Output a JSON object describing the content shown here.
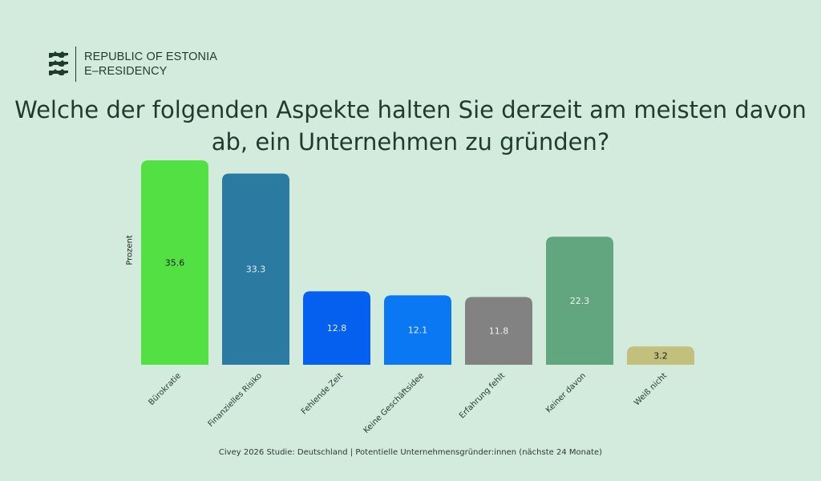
{
  "brand": {
    "line1": "REPUBLIC OF ESTONIA",
    "line2": "E–RESIDENCY",
    "icon": "three-lions-crest-icon"
  },
  "chart_data": {
    "type": "bar",
    "title": "Welche der folgenden Aspekte halten Sie derzeit am meisten davon ab, ein Unternehmen zu gründen?",
    "ylabel": "Prozent",
    "xlabel": "",
    "categories": [
      "Bürokratie",
      "Finanzielles Risiko",
      "Fehlende Zeit",
      "Keine Geschäftsidee",
      "Erfahrung fehlt",
      "Keiner davon",
      "Weiß nicht"
    ],
    "values": [
      35.6,
      33.3,
      12.8,
      12.1,
      11.8,
      22.3,
      3.2
    ],
    "colors": [
      "#52e042",
      "#2a7aa1",
      "#0660ef",
      "#0a78f2",
      "#828282",
      "#62a680",
      "#c2c07c"
    ],
    "label_colors": [
      "#1a1a1a",
      "#e8f2f8",
      "#e8f0ff",
      "#e8f0ff",
      "#f0f0f0",
      "#eef6f0",
      "#1a1a1a"
    ],
    "ylim": [
      0,
      35.6
    ],
    "grid": false,
    "legend": "none"
  },
  "footer": "Civey 2026 Studie: Deutschland | Potentielle Unternehmensgründer:innen (nächste 24 Monate)"
}
